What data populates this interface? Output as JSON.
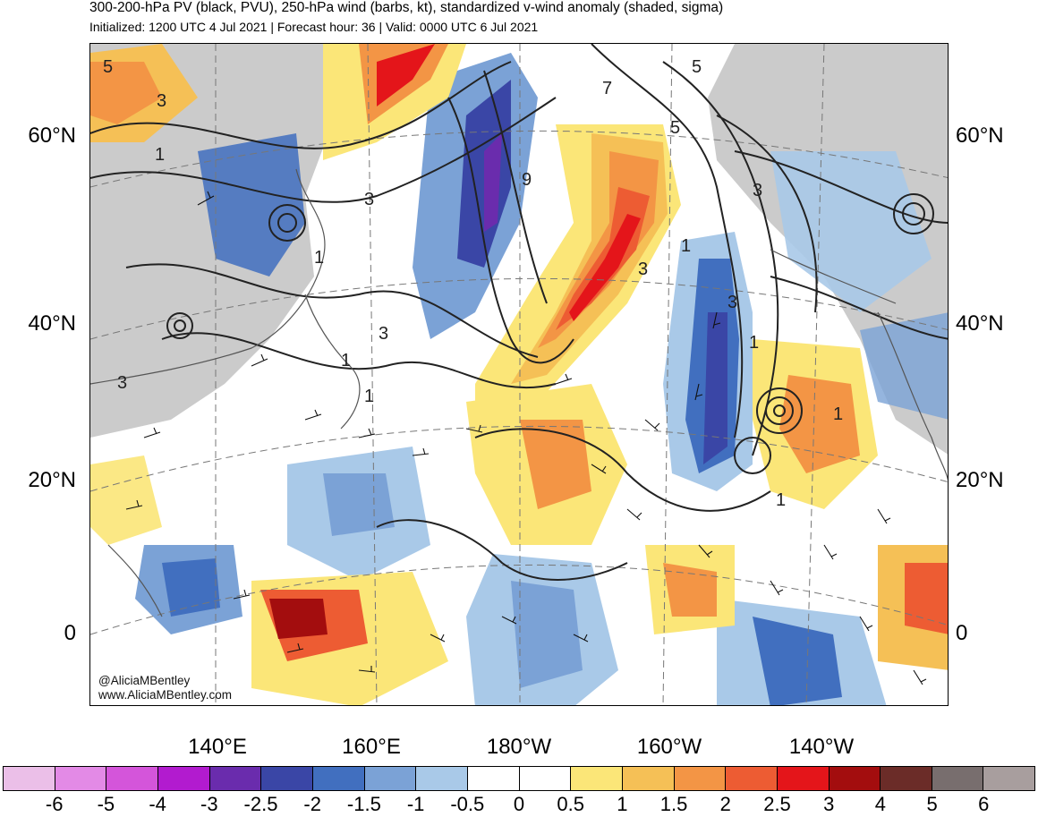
{
  "title": "300-200-hPa PV (black, PVU), 250-hPa wind (barbs, kt), standardized v-wind anomaly (shaded, sigma)",
  "subtitle": "Initialized: 1200 UTC 4 Jul 2021 | Forecast hour: 36 | Valid: 0000 UTC 6 Jul 2021",
  "lat_labels": [
    "60°N",
    "40°N",
    "20°N",
    "0"
  ],
  "lon_labels": [
    "140°E",
    "160°E",
    "180°W",
    "160°W",
    "140°W"
  ],
  "credit_handle": "@AliciaMBentley",
  "credit_url": "www.AliciaMBentley.com",
  "colorbar": {
    "colors": [
      "#ebbfe8",
      "#e38ae6",
      "#d455da",
      "#b21bcf",
      "#6a2cad",
      "#3a46a6",
      "#416fbf",
      "#7ba2d6",
      "#a9c9e8",
      "#ffffff",
      "#ffffff",
      "#fbe678",
      "#f5c056",
      "#f39545",
      "#ed5c33",
      "#e4151a",
      "#a30d0e",
      "#6b2c28",
      "#786e6e",
      "#a89e9e"
    ],
    "labels": [
      "-6",
      "-5",
      "-4",
      "-3",
      "-2.5",
      "-2",
      "-1.5",
      "-1",
      "-0.5",
      "0",
      "0.5",
      "1",
      "1.5",
      "2",
      "2.5",
      "3",
      "4",
      "5",
      "6"
    ]
  },
  "pv_contour_labels": [
    "5",
    "3",
    "1",
    "3",
    "1",
    "3",
    "3",
    "1",
    "1",
    "1",
    "9",
    "7",
    "5",
    "5",
    "3",
    "3",
    "1",
    "3",
    "1",
    "1"
  ]
}
